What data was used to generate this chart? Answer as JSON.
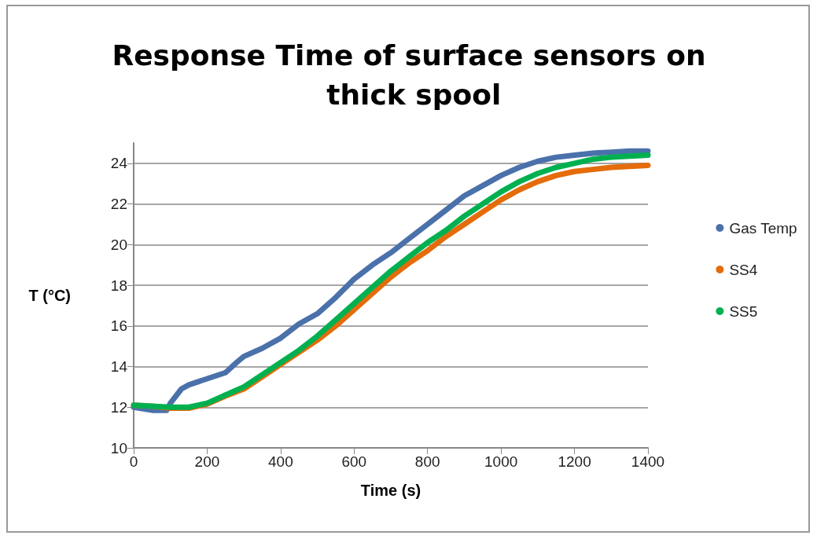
{
  "chart_data": {
    "type": "line",
    "title": "Response Time of surface sensors on thick spool",
    "xlabel": "Time (s)",
    "ylabel": "T (°C)",
    "xlim": [
      0,
      1400
    ],
    "xticks": [
      0,
      200,
      400,
      600,
      800,
      1000,
      1200,
      1400
    ],
    "ylim": [
      10,
      25
    ],
    "yticks": [
      10,
      12,
      14,
      16,
      18,
      20,
      22,
      24
    ],
    "grid": "y",
    "legend": "right",
    "series": [
      {
        "name": "Gas Temp",
        "color": "#4a71aa",
        "x": [
          0,
          50,
          90,
          100,
          130,
          150,
          200,
          250,
          280,
          300,
          350,
          400,
          450,
          500,
          550,
          600,
          650,
          700,
          750,
          800,
          850,
          900,
          950,
          1000,
          1050,
          1100,
          1150,
          1200,
          1250,
          1300,
          1350,
          1400
        ],
        "values": [
          12.0,
          11.85,
          11.85,
          12.2,
          12.9,
          13.1,
          13.4,
          13.7,
          14.2,
          14.5,
          14.9,
          15.4,
          16.1,
          16.6,
          17.4,
          18.3,
          19.0,
          19.6,
          20.3,
          21.0,
          21.7,
          22.4,
          22.9,
          23.4,
          23.8,
          24.1,
          24.3,
          24.4,
          24.5,
          24.55,
          24.6,
          24.6
        ]
      },
      {
        "name": "SS4",
        "color": "#e46c0a",
        "x": [
          0,
          50,
          100,
          150,
          200,
          250,
          300,
          350,
          400,
          450,
          500,
          550,
          600,
          650,
          700,
          750,
          800,
          850,
          900,
          950,
          1000,
          1050,
          1100,
          1150,
          1200,
          1250,
          1300,
          1350,
          1400
        ],
        "values": [
          12.1,
          12.05,
          11.95,
          11.95,
          12.15,
          12.55,
          12.9,
          13.5,
          14.1,
          14.7,
          15.3,
          16.0,
          16.8,
          17.6,
          18.4,
          19.1,
          19.7,
          20.4,
          21.0,
          21.6,
          22.2,
          22.7,
          23.1,
          23.4,
          23.6,
          23.7,
          23.8,
          23.85,
          23.9
        ]
      },
      {
        "name": "SS5",
        "color": "#00b050",
        "x": [
          0,
          50,
          100,
          150,
          200,
          250,
          300,
          350,
          400,
          450,
          500,
          550,
          600,
          650,
          700,
          750,
          800,
          850,
          900,
          950,
          1000,
          1050,
          1100,
          1150,
          1200,
          1250,
          1300,
          1350,
          1400
        ],
        "values": [
          12.1,
          12.05,
          12.0,
          12.0,
          12.2,
          12.6,
          13.0,
          13.6,
          14.2,
          14.8,
          15.5,
          16.3,
          17.1,
          17.9,
          18.7,
          19.4,
          20.1,
          20.7,
          21.4,
          22.0,
          22.6,
          23.1,
          23.5,
          23.8,
          24.0,
          24.2,
          24.3,
          24.35,
          24.4
        ]
      }
    ]
  }
}
